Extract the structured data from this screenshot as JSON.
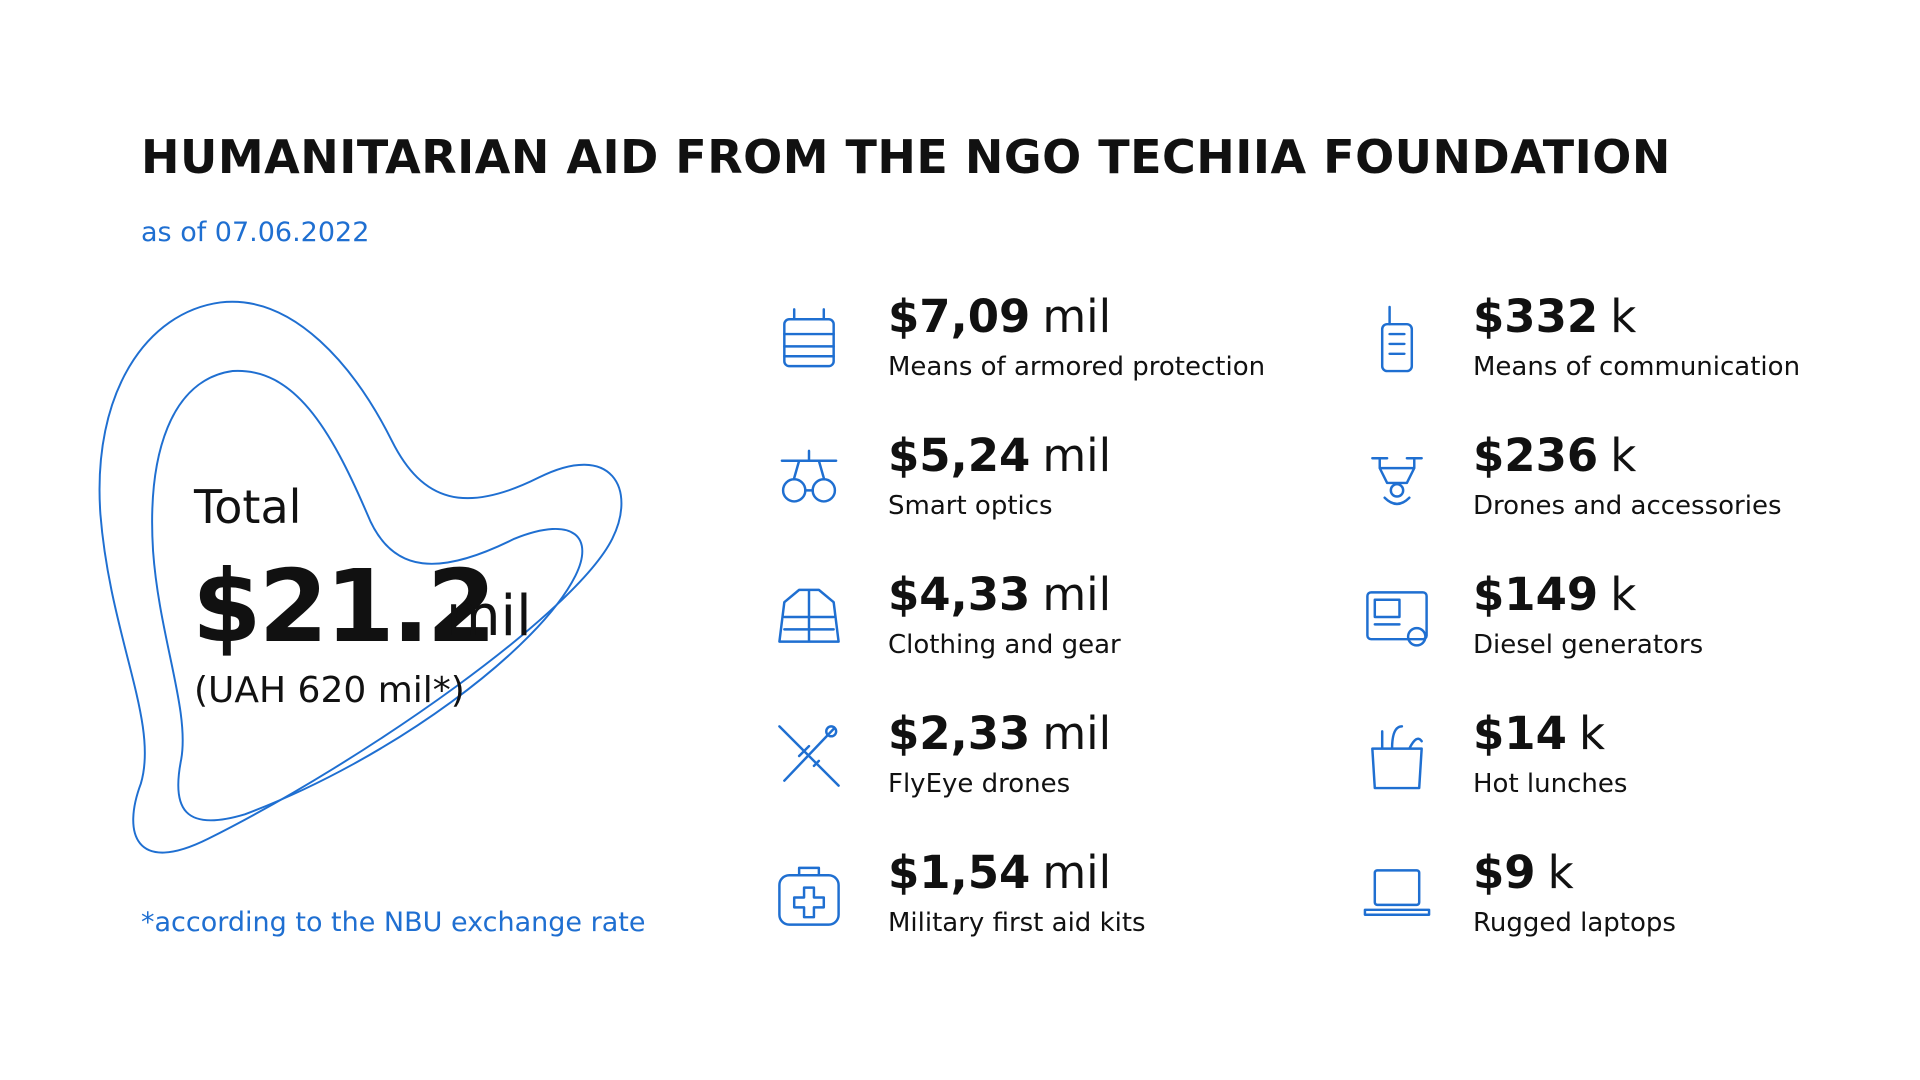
{
  "header": {
    "title": "HUMANITARIAN AID FROM THE NGO TECHIIA FOUNDATION",
    "subtitle": "as of 07.06.2022"
  },
  "total": {
    "label": "Total",
    "amount": "$21.2",
    "unit": "mil",
    "note": "(UAH 620 mil*)"
  },
  "footnote": "*according to the NBU exchange rate",
  "items": [
    {
      "amount": "$7,09",
      "unit": "mil",
      "label": "Means of armored protection"
    },
    {
      "amount": "$5,24",
      "unit": "mil",
      "label": "Smart optics"
    },
    {
      "amount": "$4,33",
      "unit": "mil",
      "label": "Clothing and gear"
    },
    {
      "amount": "$2,33",
      "unit": "mil",
      "label": "FlyEye drones"
    },
    {
      "amount": "$1,54",
      "unit": "mil",
      "label": "Military first aid kits"
    },
    {
      "amount": "$332",
      "unit": "k",
      "label": "Means of communication"
    },
    {
      "amount": "$236",
      "unit": "k",
      "label": "Drones and accessories"
    },
    {
      "amount": "$149",
      "unit": "k",
      "label": "Diesel generators"
    },
    {
      "amount": "$14",
      "unit": "k",
      "label": "Hot lunches"
    },
    {
      "amount": "$9",
      "unit": "k",
      "label": "Rugged laptops"
    }
  ]
}
